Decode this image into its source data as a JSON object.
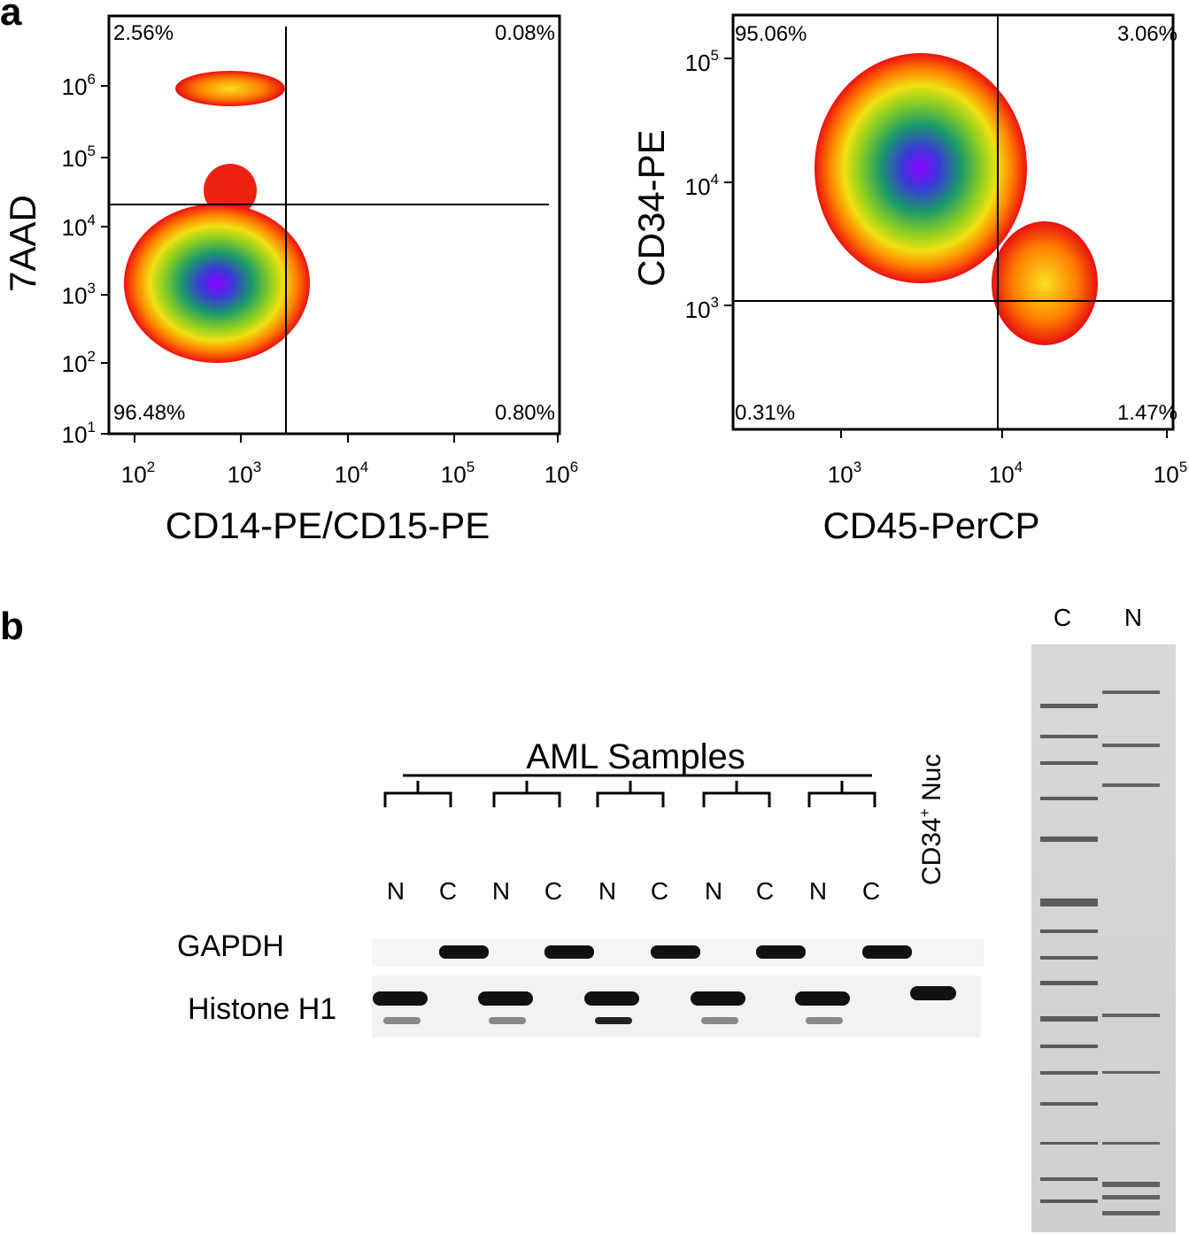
{
  "panel_a": {
    "label": "a",
    "plot_1": {
      "y_label": "7AAD",
      "x_label": "CD14-PE/CD15-PE",
      "y_ticks": [
        {
          "base": "10",
          "exp": "6"
        },
        {
          "base": "10",
          "exp": "5"
        },
        {
          "base": "10",
          "exp": "4"
        },
        {
          "base": "10",
          "exp": "3"
        },
        {
          "base": "10",
          "exp": "2"
        },
        {
          "base": "10",
          "exp": "1"
        }
      ],
      "x_ticks": [
        {
          "base": "10",
          "exp": "2"
        },
        {
          "base": "10",
          "exp": "3"
        },
        {
          "base": "10",
          "exp": "4"
        },
        {
          "base": "10",
          "exp": "5"
        },
        {
          "base": "10",
          "exp": "6"
        }
      ],
      "quadrants": {
        "top_left": "2.56%",
        "top_right": "0.08%",
        "bottom_left": "96.48%",
        "bottom_right": "0.80%"
      }
    },
    "plot_2": {
      "y_label": "CD34-PE",
      "x_label": "CD45-PerCP",
      "y_ticks": [
        {
          "base": "10",
          "exp": "5"
        },
        {
          "base": "10",
          "exp": "4"
        },
        {
          "base": "10",
          "exp": "3"
        }
      ],
      "x_ticks": [
        {
          "base": "10",
          "exp": "3"
        },
        {
          "base": "10",
          "exp": "4"
        },
        {
          "base": "10",
          "exp": "5"
        }
      ],
      "quadrants": {
        "top_left": "95.06%",
        "top_right": "3.06%",
        "bottom_left": "0.31%",
        "bottom_right": "1.47%"
      }
    }
  },
  "panel_b": {
    "label": "b",
    "group_title": "AML Samples",
    "lane_labels": [
      "N",
      "C",
      "N",
      "C",
      "N",
      "C",
      "N",
      "C",
      "N",
      "C"
    ],
    "control_lane": {
      "name": "CD34",
      "sup": "+",
      "suffix": " Nuc"
    },
    "rows": [
      "GAPDH",
      "Histone H1"
    ],
    "gel_lanes": [
      "C",
      "N"
    ]
  }
}
